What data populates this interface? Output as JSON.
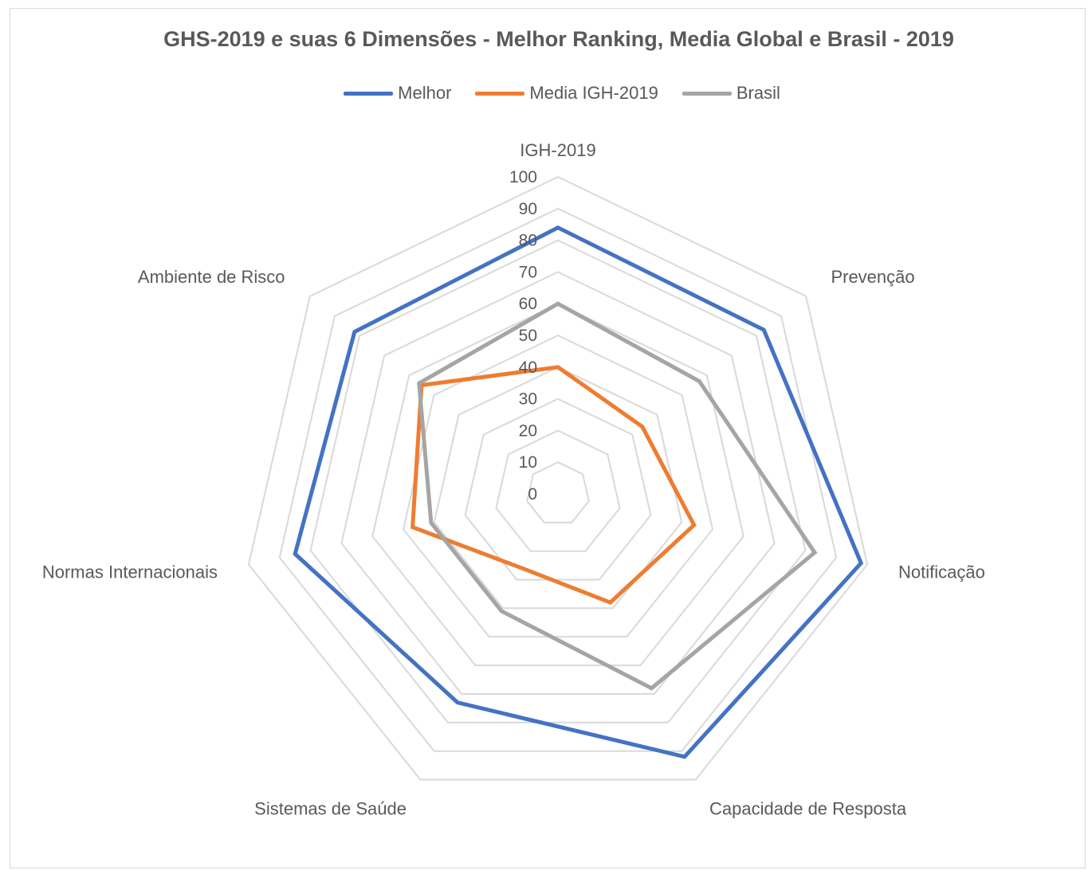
{
  "chart_data": {
    "type": "radar",
    "title": "GHS-2019 e suas 6 Dimensões - Melhor Ranking, Media Global e Brasil - 2019",
    "categories": [
      "IGH-2019",
      "Prevenção",
      "Notificação",
      "Capacidade de Resposta",
      "Sistemas de Saúde",
      "Normas Internacionais",
      "Ambiente de Risco"
    ],
    "series": [
      {
        "name": "Melhor",
        "color": "#4472C4",
        "values": [
          84,
          83,
          98,
          92,
          73,
          85,
          82
        ]
      },
      {
        "name": "Media IGH-2019",
        "color": "#ED7D31",
        "values": [
          40,
          34,
          44,
          38,
          26,
          47,
          55
        ]
      },
      {
        "name": "Brasil",
        "color": "#A5A5A5",
        "values": [
          60,
          57,
          83,
          68,
          41,
          41,
          56
        ]
      }
    ],
    "rlim": [
      0,
      100
    ],
    "ticks": [
      "0",
      "10",
      "20",
      "30",
      "40",
      "50",
      "60",
      "70",
      "80",
      "90",
      "100"
    ],
    "grid": true,
    "legend_position": "top"
  }
}
